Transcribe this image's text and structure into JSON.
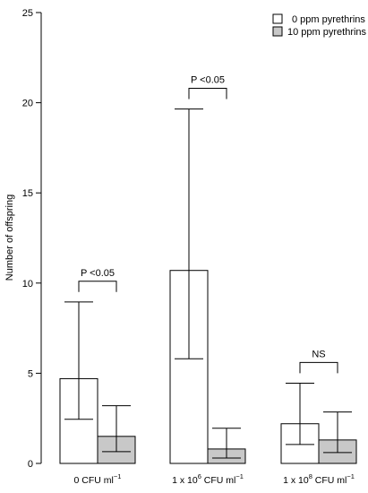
{
  "chart_data": {
    "type": "bar",
    "ylabel": "Number of offspring",
    "ylim": [
      0,
      25
    ],
    "yticks": [
      0,
      5,
      10,
      15,
      20,
      25
    ],
    "grid": false,
    "legend_position": "top-right",
    "categories": [
      {
        "pre": "0 CFU ml",
        "sup": "−1",
        "post": ""
      },
      {
        "pre": "1 x 10",
        "sup": "6",
        "post": " CFU ml",
        "sup2": "−1"
      },
      {
        "pre": "1 x 10",
        "sup": "8",
        "post": " CFU ml",
        "sup2": "−1"
      }
    ],
    "series": [
      {
        "name": "0 ppm pyrethrins",
        "color": "#ffffff",
        "values": [
          4.7,
          10.7,
          2.2
        ],
        "err_low": [
          2.45,
          5.8,
          1.05
        ],
        "err_high": [
          8.95,
          19.65,
          4.45
        ]
      },
      {
        "name": "10 ppm pyrethrins",
        "color": "#c8c8c8",
        "values": [
          1.5,
          0.8,
          1.3
        ],
        "err_low": [
          0.65,
          0.3,
          0.6
        ],
        "err_high": [
          3.2,
          1.95,
          2.85
        ]
      }
    ],
    "annotations": [
      {
        "category": 0,
        "text": "P <0.05",
        "y": 10.1
      },
      {
        "category": 1,
        "text": "P <0.05",
        "y": 20.8
      },
      {
        "category": 2,
        "text": "NS",
        "y": 5.6
      }
    ]
  }
}
